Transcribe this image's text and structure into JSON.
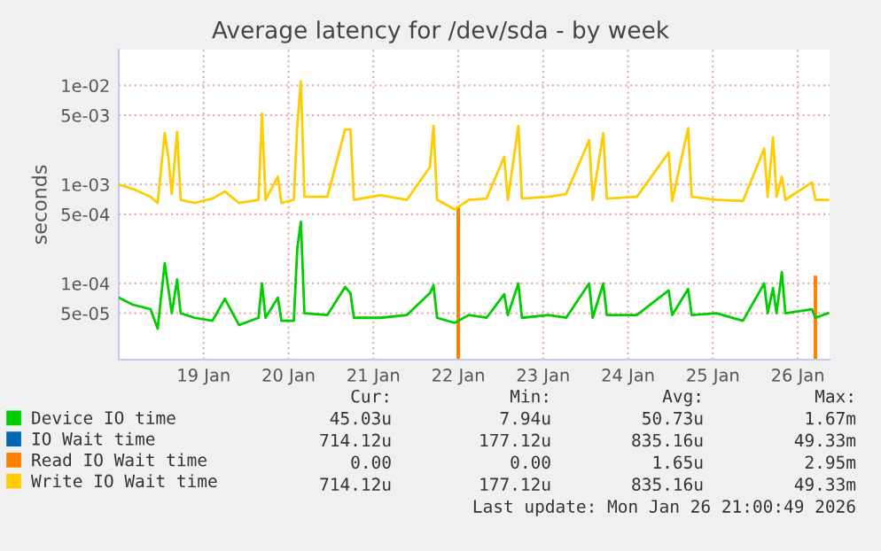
{
  "chart_data": {
    "type": "line",
    "title": "Average latency for /dev/sda - by week",
    "ylabel": "seconds",
    "log": "y",
    "grid": true,
    "legend": "bottom",
    "x": [
      "2026-01-18T12:00",
      "2026-01-18T16:00",
      "2026-01-18T21:00",
      "2026-01-18T23:00",
      "2026-01-19T01:00",
      "2026-01-19T02:00",
      "2026-01-19T03:00",
      "2026-01-19T04:30",
      "2026-01-19T05:30",
      "2026-01-19T09:30",
      "2026-01-19T14:30",
      "2026-01-19T18:00",
      "2026-01-19T22:00",
      "2026-01-20T03:30",
      "2026-01-20T04:30",
      "2026-01-20T05:30",
      "2026-01-20T09:00",
      "2026-01-20T10:00",
      "2026-01-20T13:30",
      "2026-01-20T14:30",
      "2026-01-20T15:30",
      "2026-01-20T16:30",
      "2026-01-20T23:00",
      "2026-01-21T04:00",
      "2026-01-21T05:30",
      "2026-01-21T06:30",
      "2026-01-21T14:00",
      "2026-01-21T21:30",
      "2026-01-22T04:00",
      "2026-01-22T05:00",
      "2026-01-22T06:00",
      "2026-01-22T11:00",
      "2026-01-22T15:00",
      "2026-01-22T20:00",
      "2026-01-23T01:00",
      "2026-01-23T02:00",
      "2026-01-23T05:00",
      "2026-01-23T06:00",
      "2026-01-23T13:30",
      "2026-01-23T18:30",
      "2026-01-24T01:00",
      "2026-01-24T02:00",
      "2026-01-24T05:00",
      "2026-01-24T06:00",
      "2026-01-24T14:30",
      "2026-01-24T23:30",
      "2026-01-25T00:30",
      "2026-01-25T05:00",
      "2026-01-25T06:00",
      "2026-01-25T13:00",
      "2026-01-25T20:30",
      "2026-01-26T02:30",
      "2026-01-26T03:30",
      "2026-01-26T05:00",
      "2026-01-26T06:00",
      "2026-01-26T07:30",
      "2026-01-26T08:30",
      "2026-01-26T16:00",
      "2026-01-26T17:00",
      "2026-01-26T20:30"
    ],
    "series": [
      {
        "name": "Device IO time",
        "color": "#00cc00",
        "values": [
          7.2e-05,
          6.1e-05,
          5.5e-05,
          3.5e-05,
          0.00016,
          9e-05,
          5e-05,
          0.00011,
          5e-05,
          4.5e-05,
          4.2e-05,
          7e-05,
          3.8e-05,
          4.5e-05,
          0.0001,
          4.5e-05,
          7.2e-05,
          4.2e-05,
          4.2e-05,
          0.00023,
          0.00042,
          5e-05,
          4.8e-05,
          9.2e-05,
          8e-05,
          4.5e-05,
          4.5e-05,
          4.8e-05,
          8e-05,
          9.6e-05,
          4.5e-05,
          4e-05,
          4.8e-05,
          4.5e-05,
          7.8e-05,
          4.8e-05,
          0.0001,
          4.5e-05,
          4.8e-05,
          4.5e-05,
          0.0001,
          4.5e-05,
          0.0001,
          4.8e-05,
          4.8e-05,
          8.5e-05,
          4.8e-05,
          8.8e-05,
          4.8e-05,
          5e-05,
          4.2e-05,
          0.0001,
          5e-05,
          9e-05,
          5e-05,
          0.00013,
          5e-05,
          5.5e-05,
          4.5e-05,
          5e-05
        ]
      },
      {
        "name": "IO Wait time",
        "color": "#0066b3",
        "values": [
          null,
          null,
          null,
          null,
          null,
          null,
          null,
          null,
          null,
          null,
          null,
          null,
          null,
          null,
          null,
          null,
          null,
          null,
          null,
          null,
          null,
          null,
          null,
          null,
          null,
          null,
          null,
          null,
          null,
          null,
          null,
          null,
          null,
          null,
          null,
          null,
          null,
          null,
          null,
          null,
          null,
          null,
          null,
          null,
          null,
          null,
          null,
          null,
          null,
          null,
          null,
          null,
          null,
          null,
          null,
          null,
          null,
          null,
          null,
          null
        ]
      },
      {
        "name": "Read IO Wait time",
        "type": "bar",
        "color": "#ff8000",
        "x": [
          "2026-01-22T12:00",
          "2026-01-26T17:00"
        ],
        "values": [
          0.0006,
          0.00012
        ]
      },
      {
        "name": "Write IO Wait time",
        "color": "#ffcc00",
        "values": [
          0.001,
          0.0009,
          0.00075,
          0.00065,
          0.0033,
          0.0019,
          0.0008,
          0.0034,
          0.0007,
          0.00065,
          0.00072,
          0.00085,
          0.00065,
          0.0007,
          0.0052,
          0.0007,
          0.0012,
          0.00065,
          0.0007,
          0.004,
          0.011,
          0.00075,
          0.00075,
          0.0036,
          0.0036,
          0.0007,
          0.00078,
          0.0007,
          0.0015,
          0.0039,
          0.0007,
          0.00056,
          0.0007,
          0.00072,
          0.0019,
          0.0007,
          0.0039,
          0.00072,
          0.00075,
          0.0008,
          0.0028,
          0.0007,
          0.0033,
          0.00072,
          0.00075,
          0.0021,
          0.00068,
          0.0037,
          0.00075,
          0.0007,
          0.00068,
          0.0023,
          0.00075,
          0.003,
          0.00075,
          0.0012,
          0.0007,
          0.00105,
          0.0007,
          0.0007
        ]
      }
    ],
    "xlim": [
      "2026-01-18T12:00",
      "2026-01-26T21:00"
    ],
    "xticks": [
      {
        "value": "2026-01-19T12:00",
        "label": "19 Jan"
      },
      {
        "value": "2026-01-20T12:00",
        "label": "20 Jan"
      },
      {
        "value": "2026-01-21T12:00",
        "label": "21 Jan"
      },
      {
        "value": "2026-01-22T12:00",
        "label": "22 Jan"
      },
      {
        "value": "2026-01-23T12:00",
        "label": "23 Jan"
      },
      {
        "value": "2026-01-24T12:00",
        "label": "24 Jan"
      },
      {
        "value": "2026-01-25T12:00",
        "label": "25 Jan"
      },
      {
        "value": "2026-01-26T12:00",
        "label": "26 Jan"
      }
    ],
    "ylim": [
      1.7e-05,
      0.023
    ],
    "yticks": [
      {
        "value": 5e-05,
        "label": "5e-05"
      },
      {
        "value": 0.0001,
        "label": "1e-04"
      },
      {
        "value": 0.0005,
        "label": "5e-04"
      },
      {
        "value": 0.001,
        "label": "1e-03"
      },
      {
        "value": 0.005,
        "label": "5e-03"
      },
      {
        "value": 0.01,
        "label": "1e-02"
      }
    ],
    "annotations": [
      "Cur:",
      "Min:",
      "Avg:",
      "Max:",
      "45.03u",
      "7.94u",
      "50.73u",
      "1.67m",
      "714.12u",
      "177.12u",
      "835.16u",
      "49.33m",
      "0.00",
      "0.00",
      "1.65u",
      "2.95m",
      "714.12u",
      "177.12u",
      "835.16u",
      "49.33m",
      "Last update: Mon Jan 26 21:00:49 2026"
    ]
  }
}
